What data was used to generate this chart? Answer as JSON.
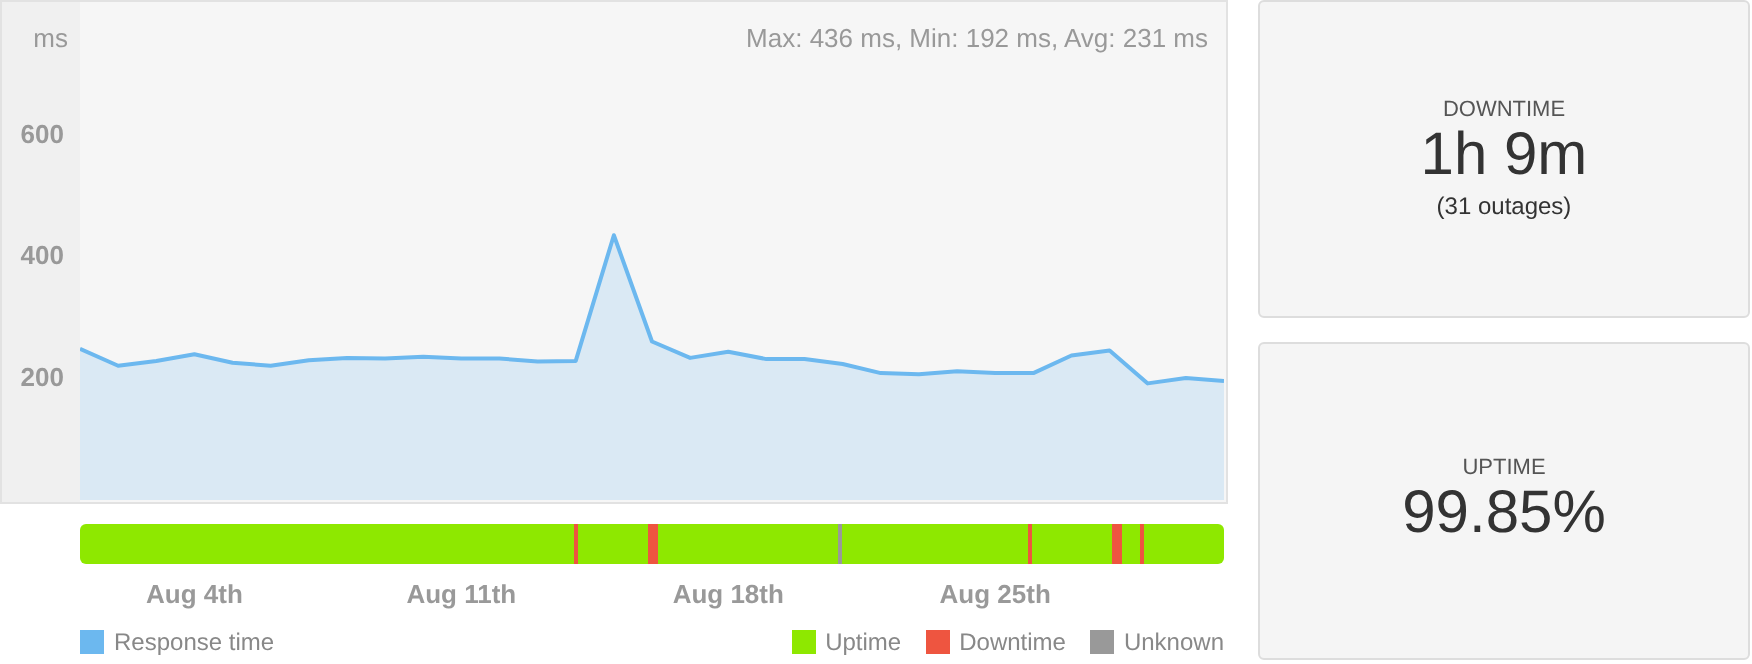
{
  "chart_data": [
    {
      "type": "area",
      "ylabel": "ms",
      "annotations": [
        "Max: 436 ms, Min: 192 ms, Avg: 231 ms",
        "Uptime",
        "Downtime",
        "Unknown"
      ],
      "x": [
        "--08-01",
        "--08-02",
        "--08-03",
        "--08-04",
        "--08-05",
        "--08-06",
        "--08-07",
        "--08-08",
        "--08-09",
        "--08-10",
        "--08-11",
        "--08-12",
        "--08-13",
        "--08-14",
        "--08-15",
        "--08-16",
        "--08-17",
        "--08-18",
        "--08-19",
        "--08-20",
        "--08-21",
        "--08-22",
        "--08-23",
        "--08-24",
        "--08-25",
        "--08-26",
        "--08-27",
        "--08-28",
        "--08-29",
        "--08-30",
        "--08-31"
      ],
      "series": [
        {
          "name": "Response time",
          "color": "#6cb8ef",
          "values": [
            249,
            221,
            229,
            240,
            226,
            221,
            230,
            234,
            233,
            236,
            233,
            233,
            228,
            229,
            436,
            261,
            234,
            244,
            232,
            232,
            224,
            209,
            207,
            212,
            209,
            209,
            238,
            246,
            192,
            201,
            196
          ]
        }
      ],
      "xlim": [
        "--08-01",
        "--08-31"
      ],
      "xticks": [
        {
          "value": "--08-04",
          "label": "Aug 4th"
        },
        {
          "value": "--08-11",
          "label": "Aug 11th"
        },
        {
          "value": "--08-18",
          "label": "Aug 18th"
        },
        {
          "value": "--08-25",
          "label": "Aug 25th"
        }
      ],
      "ylim": [
        0,
        820
      ],
      "yticks": [
        200,
        400,
        600
      ],
      "grid": false,
      "legend": "bottom left"
    },
    {
      "type": "other",
      "title": "DOWNTIME",
      "annotations": [
        "1h 9m",
        "(31 outages)"
      ]
    },
    {
      "type": "other",
      "title": "UPTIME",
      "annotations": [
        "99.85%"
      ]
    }
  ]
}
